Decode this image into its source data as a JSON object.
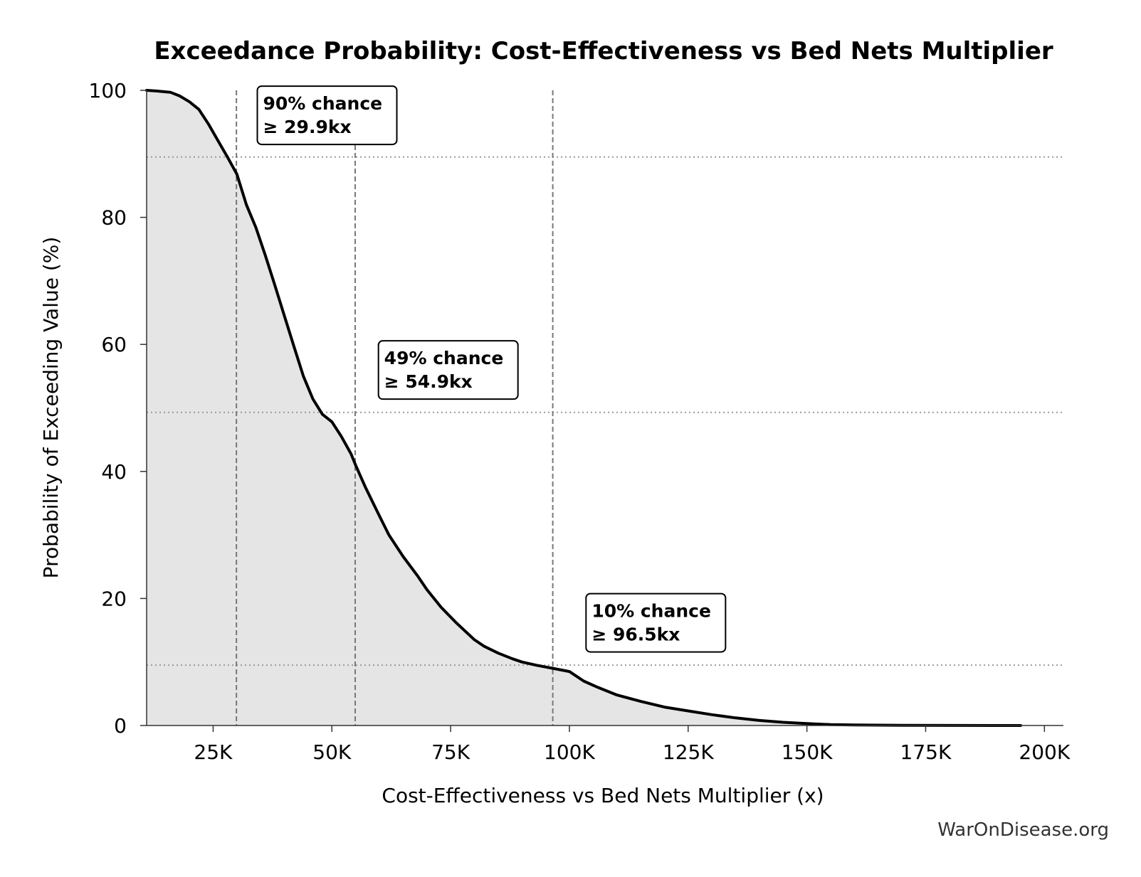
{
  "chart_data": {
    "type": "area",
    "title": "Exceedance Probability: Cost-Effectiveness vs Bed Nets Multiplier",
    "xlabel": "Cost-Effectiveness vs Bed Nets Multiplier (x)",
    "ylabel": "Probability of Exceeding Value (%)",
    "xlim": [
      11000,
      204000
    ],
    "ylim": [
      0,
      100
    ],
    "x_ticks": [
      {
        "value": 25000,
        "label": "25K"
      },
      {
        "value": 50000,
        "label": "50K"
      },
      {
        "value": 75000,
        "label": "75K"
      },
      {
        "value": 100000,
        "label": "100K"
      },
      {
        "value": 125000,
        "label": "125K"
      },
      {
        "value": 150000,
        "label": "150K"
      },
      {
        "value": 175000,
        "label": "175K"
      },
      {
        "value": 200000,
        "label": "200K"
      }
    ],
    "y_ticks": [
      {
        "value": 0,
        "label": "0"
      },
      {
        "value": 20,
        "label": "20"
      },
      {
        "value": 40,
        "label": "40"
      },
      {
        "value": 60,
        "label": "60"
      },
      {
        "value": 80,
        "label": "80"
      },
      {
        "value": 100,
        "label": "100"
      }
    ],
    "grid": false,
    "series": [
      {
        "line_color": "#000000",
        "fill_color": "#e5e5e5",
        "x": [
          11000,
          13000,
          16000,
          18000,
          20000,
          22000,
          24000,
          26000,
          28000,
          30000,
          32000,
          34000,
          36000,
          38000,
          40000,
          42000,
          44000,
          46000,
          48000,
          50000,
          52000,
          54000,
          55000,
          57000,
          60000,
          62000,
          65000,
          68000,
          70000,
          73000,
          76000,
          78000,
          80000,
          82000,
          85000,
          88000,
          90000,
          93000,
          96500,
          100000,
          103000,
          106000,
          110000,
          115000,
          120000,
          125000,
          130000,
          135000,
          140000,
          145000,
          150000,
          155000,
          160000,
          170000,
          180000,
          195000
        ],
        "y": [
          100,
          99.9,
          99.7,
          99.1,
          98.2,
          97,
          94.7,
          92.1,
          89.5,
          86.8,
          82,
          78.4,
          74,
          69.3,
          64.5,
          59.7,
          55,
          51.4,
          49,
          47.8,
          45.5,
          42.8,
          41,
          37.6,
          33,
          30,
          26.6,
          23.6,
          21.4,
          18.6,
          16.3,
          14.9,
          13.5,
          12.5,
          11.4,
          10.5,
          10,
          9.5,
          9,
          8.5,
          7,
          6,
          4.8,
          3.8,
          2.9,
          2.3,
          1.7,
          1.2,
          0.8,
          0.5,
          0.3,
          0.15,
          0.08,
          0.03,
          0.01,
          0
        ]
      }
    ],
    "annotations": [
      {
        "x_value": 29900,
        "y_value": 89.5,
        "percent": 90,
        "threshold": "29.9kx",
        "line1": "90% chance",
        "line2": "≥ 29.9kx",
        "box_x": 35500,
        "box_y": 98.2
      },
      {
        "x_value": 54900,
        "y_value": 49.3,
        "percent": 49,
        "threshold": "54.9kx",
        "line1": "49% chance",
        "line2": "≥ 54.9kx",
        "box_x": 61000,
        "box_y": 58.1
      },
      {
        "x_value": 96500,
        "y_value": 9.5,
        "percent": 10,
        "threshold": "96.5kx",
        "line1": "10% chance",
        "line2": "≥ 96.5kx",
        "box_x": 104700,
        "box_y": 18.3
      }
    ],
    "watermark": "WarOnDisease.org"
  }
}
